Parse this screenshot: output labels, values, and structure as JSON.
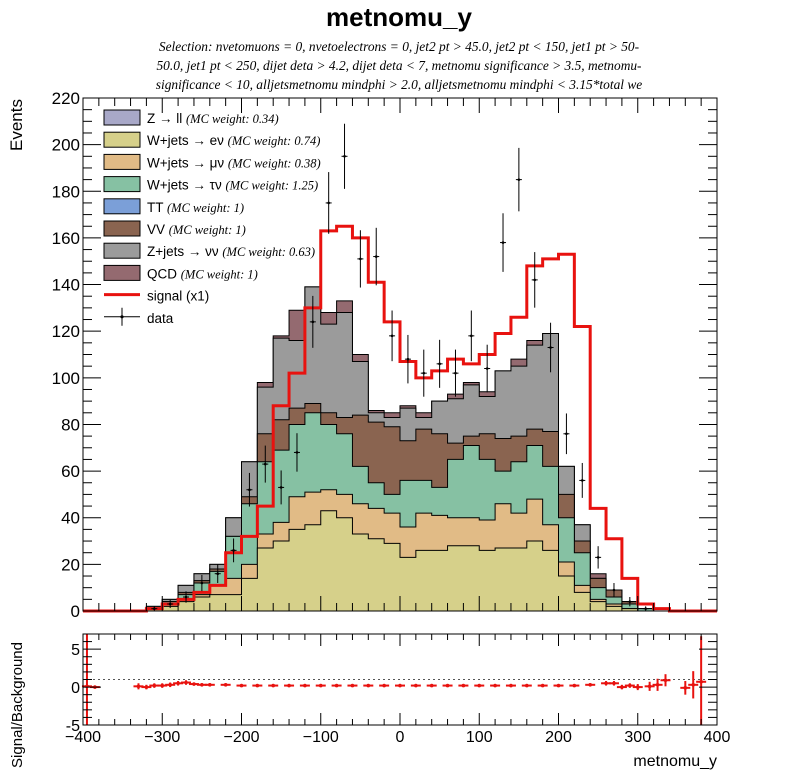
{
  "chart_data": [
    {
      "type": "stacked-histogram",
      "title": "metnomu_y",
      "subtitle_lines": [
        "Selection: nvetomuons = 0, nvetoelectrons = 0, jet2 pt > 45.0, jet2 pt < 150, jet1 pt > 50-",
        "50.0, jet1 pt < 250, dijet deta > 4.2, dijet deta < 7, metnomu significance > 3.5, metnomu-",
        "significance < 10, alljetsmetnomu mindphi > 2.0, alljetsmetnomu mindphi < 3.15*total we"
      ],
      "ylabel": "Events",
      "xlim": [
        -400,
        400
      ],
      "ylim": [
        0,
        220
      ],
      "yticks": [
        0,
        20,
        40,
        60,
        80,
        100,
        120,
        140,
        160,
        180,
        200,
        220
      ],
      "legend_position": "top-left",
      "bin_edges": [
        -400,
        -380,
        -360,
        -340,
        -320,
        -300,
        -280,
        -260,
        -240,
        -220,
        -200,
        -180,
        -160,
        -140,
        -120,
        -100,
        -80,
        -60,
        -40,
        -20,
        0,
        20,
        40,
        60,
        80,
        100,
        120,
        140,
        160,
        180,
        200,
        220,
        240,
        260,
        280,
        300,
        320,
        340,
        360,
        380,
        400
      ],
      "legend": [
        {
          "text": "Z → ll",
          "note": "(MC weight: 0.34)",
          "color": "#a8a8c8"
        },
        {
          "text": "W+jets → eν",
          "note": "(MC weight: 0.74)",
          "color": "#d6d08a"
        },
        {
          "text": "W+jets → μν",
          "note": "(MC weight: 0.38)",
          "color": "#e1bb86"
        },
        {
          "text": "W+jets → τν",
          "note": "(MC weight: 1.25)",
          "color": "#86c1a3"
        },
        {
          "text": "TT",
          "note": "(MC weight: 1)",
          "color": "#7b9fd8"
        },
        {
          "text": "VV",
          "note": "(MC weight: 1)",
          "color": "#8a6450"
        },
        {
          "text": "Z+jets → νν",
          "note": "(MC weight: 0.63)",
          "color": "#9b9b9b"
        },
        {
          "text": "QCD",
          "note": "(MC weight: 1)",
          "color": "#946a70"
        },
        {
          "text": "signal (x1)",
          "note": "",
          "color": "#e8120f"
        },
        {
          "text": "data",
          "note": "",
          "color": "#000000"
        }
      ],
      "stack_order": [
        "W+jets → eν",
        "W+jets → μν",
        "W+jets → τν",
        "VV",
        "Z+jets → νν",
        "QCD"
      ],
      "stack_cumulative": {
        "W+jets → eν": [
          0,
          0,
          0,
          0,
          1,
          2,
          4,
          6,
          7,
          7,
          14,
          27,
          30,
          35,
          37,
          43,
          40,
          33,
          31,
          29,
          23,
          26,
          26,
          28,
          28,
          26,
          27,
          27,
          30,
          26,
          15,
          8,
          4,
          2,
          1,
          0,
          0,
          0,
          0,
          0
        ],
        "W+jets → μν": [
          0,
          0,
          0,
          0,
          1,
          3,
          5,
          7,
          11,
          14,
          20,
          33,
          38,
          49,
          51,
          52,
          50,
          46,
          44,
          42,
          36,
          42,
          41,
          40,
          40,
          39,
          46,
          42,
          48,
          37,
          21,
          11,
          5,
          3,
          1,
          0,
          0,
          0,
          0,
          0
        ],
        "W+jets → τν": [
          0,
          0,
          0,
          0,
          1,
          4,
          7,
          12,
          17,
          32,
          46,
          64,
          69,
          80,
          85,
          80,
          76,
          62,
          55,
          50,
          56,
          56,
          53,
          65,
          71,
          65,
          60,
          64,
          71,
          62,
          40,
          25,
          10,
          6,
          3,
          1,
          0,
          0,
          0,
          0
        ],
        "VV": [
          0,
          0,
          0,
          0,
          1,
          4,
          8,
          13,
          18,
          32,
          49,
          76,
          82,
          87,
          89,
          85,
          83,
          84,
          81,
          79,
          73,
          78,
          76,
          72,
          75,
          76,
          74,
          75,
          78,
          77,
          50,
          30,
          14,
          9,
          4,
          1,
          0,
          0,
          0,
          0
        ],
        "Z+jets → νν": [
          0,
          0,
          0,
          0,
          2,
          5,
          11,
          16,
          20,
          40,
          64,
          96,
          117,
          116,
          139,
          123,
          128,
          107,
          85,
          83,
          87,
          83,
          90,
          91,
          97,
          92,
          103,
          105,
          114,
          119,
          62,
          37,
          14,
          9,
          4,
          1,
          0,
          0,
          0,
          0
        ],
        "QCD": [
          0,
          0,
          0,
          0,
          2,
          5,
          11,
          16,
          20,
          40,
          64,
          98,
          118,
          129,
          139,
          128,
          133,
          110,
          86,
          85,
          88,
          85,
          90,
          93,
          98,
          94,
          103,
          108,
          116,
          119,
          62,
          37,
          16,
          9,
          4,
          1,
          0,
          0,
          0,
          0
        ]
      },
      "signal": [
        0,
        0,
        0,
        0,
        1,
        3,
        5,
        8,
        11,
        25,
        32,
        45,
        88,
        102,
        130,
        163,
        165,
        160,
        141,
        124,
        107,
        100,
        103,
        108,
        106,
        110,
        119,
        126,
        148,
        151,
        153,
        122,
        44,
        31,
        14,
        3,
        1,
        0,
        0,
        0
      ],
      "data": [
        0,
        0,
        0,
        0,
        1,
        3,
        6,
        12,
        16,
        26,
        52,
        63,
        53,
        68,
        124,
        175,
        195,
        151,
        152,
        118,
        108,
        102,
        106,
        102,
        118,
        104,
        158,
        185,
        142,
        113,
        76,
        56,
        23,
        9,
        4,
        1,
        0,
        0,
        0,
        0
      ]
    },
    {
      "type": "ratio",
      "ylabel": "Signal/Background",
      "xlabel": "metnomu_y",
      "xlim": [
        -400,
        400
      ],
      "ylim": [
        -5,
        7
      ],
      "yticks": [
        -5,
        0,
        5
      ],
      "xticks": [
        -400,
        -300,
        -200,
        -100,
        0,
        100,
        200,
        300,
        400
      ],
      "reference_line": 1,
      "points": [
        {
          "x": -395,
          "y": 0.1,
          "err": 7
        },
        {
          "x": -385,
          "y": 0.0,
          "err": 0
        },
        {
          "x": -330,
          "y": 0.1,
          "err": 0.4
        },
        {
          "x": -320,
          "y": 0.0,
          "err": 0.3
        },
        {
          "x": -310,
          "y": 0.2,
          "err": 0.3
        },
        {
          "x": -300,
          "y": 0.2,
          "err": 0.3
        },
        {
          "x": -290,
          "y": 0.3,
          "err": 0.3
        },
        {
          "x": -280,
          "y": 0.5,
          "err": 0.3
        },
        {
          "x": -270,
          "y": 0.6,
          "err": 0.3
        },
        {
          "x": -260,
          "y": 0.4,
          "err": 0.2
        },
        {
          "x": -250,
          "y": 0.3,
          "err": 0.2
        },
        {
          "x": -240,
          "y": 0.3,
          "err": 0.2
        },
        {
          "x": -220,
          "y": 0.3,
          "err": 0.2
        },
        {
          "x": -200,
          "y": 0.2,
          "err": 0.2
        },
        {
          "x": -180,
          "y": 0.2,
          "err": 0.2
        },
        {
          "x": -160,
          "y": 0.2,
          "err": 0.2
        },
        {
          "x": -140,
          "y": 0.2,
          "err": 0.2
        },
        {
          "x": -120,
          "y": 0.2,
          "err": 0.2
        },
        {
          "x": -100,
          "y": 0.2,
          "err": 0.2
        },
        {
          "x": -80,
          "y": 0.2,
          "err": 0.2
        },
        {
          "x": -60,
          "y": 0.2,
          "err": 0.2
        },
        {
          "x": -40,
          "y": 0.2,
          "err": 0.2
        },
        {
          "x": -20,
          "y": 0.2,
          "err": 0.2
        },
        {
          "x": 0,
          "y": 0.2,
          "err": 0.2
        },
        {
          "x": 20,
          "y": 0.2,
          "err": 0.2
        },
        {
          "x": 40,
          "y": 0.2,
          "err": 0.2
        },
        {
          "x": 60,
          "y": 0.2,
          "err": 0.2
        },
        {
          "x": 80,
          "y": 0.2,
          "err": 0.2
        },
        {
          "x": 100,
          "y": 0.2,
          "err": 0.2
        },
        {
          "x": 120,
          "y": 0.2,
          "err": 0.2
        },
        {
          "x": 140,
          "y": 0.2,
          "err": 0.2
        },
        {
          "x": 160,
          "y": 0.2,
          "err": 0.2
        },
        {
          "x": 180,
          "y": 0.2,
          "err": 0.2
        },
        {
          "x": 200,
          "y": 0.2,
          "err": 0.2
        },
        {
          "x": 220,
          "y": 0.2,
          "err": 0.2
        },
        {
          "x": 240,
          "y": 0.3,
          "err": 0.2
        },
        {
          "x": 260,
          "y": 0.5,
          "err": 0.3
        },
        {
          "x": 270,
          "y": 0.5,
          "err": 0.3
        },
        {
          "x": 280,
          "y": 0.0,
          "err": 0.3
        },
        {
          "x": 290,
          "y": 0.2,
          "err": 0.3
        },
        {
          "x": 300,
          "y": 0.0,
          "err": 0.4
        },
        {
          "x": 315,
          "y": 0.1,
          "err": 0.6
        },
        {
          "x": 325,
          "y": 0.3,
          "err": 0.8
        },
        {
          "x": 335,
          "y": 0.9,
          "err": 0.8
        },
        {
          "x": 360,
          "y": -0.1,
          "err": 0.9
        },
        {
          "x": 370,
          "y": 0.3,
          "err": 1.8
        },
        {
          "x": 380,
          "y": 0.7,
          "err": 6
        }
      ]
    }
  ]
}
